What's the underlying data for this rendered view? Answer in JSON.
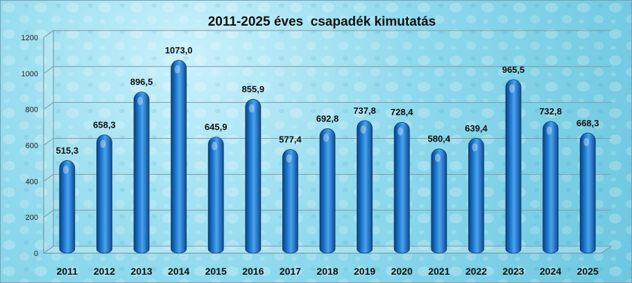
{
  "chart_data": {
    "type": "bar",
    "title": "2011-2025 éves  csapadék kimutatás",
    "categories": [
      "2011",
      "2012",
      "2013",
      "2014",
      "2015",
      "2016",
      "2017",
      "2018",
      "2019",
      "2020",
      "2021",
      "2022",
      "2023",
      "2024",
      "2025"
    ],
    "values": [
      515.3,
      658.3,
      896.5,
      1073.0,
      645.9,
      855.9,
      577.4,
      692.8,
      737.8,
      728.4,
      580.4,
      639.4,
      965.5,
      732.8,
      668.3
    ],
    "data_labels": [
      "515,3",
      "658,3",
      "896,5",
      "1073,0",
      "645,9",
      "855,9",
      "577,4",
      "692,8",
      "737,8",
      "728,4",
      "580,4",
      "639,4",
      "965,5",
      "732,8",
      "668,3"
    ],
    "yticks": [
      "0",
      "200",
      "400",
      "600",
      "800",
      "1000",
      "1200"
    ],
    "ylim": [
      0,
      1200
    ],
    "xlabel": "",
    "ylabel": "",
    "grid": true,
    "bar_color": "#1a6fc4",
    "legend": "none"
  }
}
